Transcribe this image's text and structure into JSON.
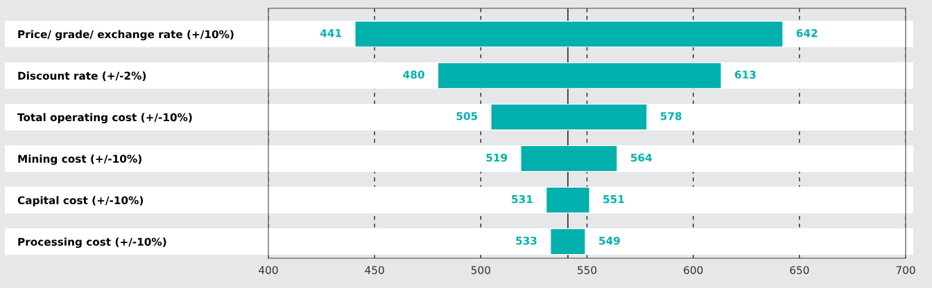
{
  "chart_data": {
    "type": "bar",
    "orientation": "horizontal",
    "categories": [
      "Price/ grade/ exchange rate (+/10%)",
      "Discount rate (+/-2%)",
      "Total operating cost (+/-10%)",
      "Mining cost (+/-10%)",
      "Capital cost (+/-10%)",
      "Processing cost (+/-10%)"
    ],
    "base": [
      441,
      480,
      505,
      519,
      531,
      533
    ],
    "values": [
      201,
      133,
      73,
      45,
      20,
      16
    ],
    "value_labels": [
      [
        "441",
        "642"
      ],
      [
        "480",
        "613"
      ],
      [
        "505",
        "578"
      ],
      [
        "519",
        "564"
      ],
      [
        "531",
        "551"
      ],
      [
        "533",
        "549"
      ]
    ],
    "color": "#00b0ad",
    "xlim": [
      400,
      700
    ],
    "xticks": [
      400,
      450,
      500,
      550,
      600,
      650,
      700
    ],
    "grid": "x",
    "line_style": "dashed",
    "ref_lines": [
      {
        "axis": "x",
        "value": 541,
        "color": "#3a3a3a",
        "line_style": "solid"
      }
    ],
    "legend": false
  }
}
